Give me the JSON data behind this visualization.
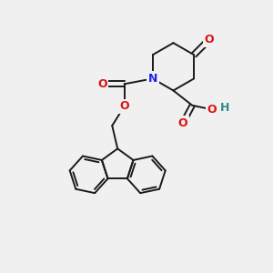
{
  "bg_color": "#f0f0f0",
  "bond_color": "#1a1a1a",
  "bond_width": 1.4,
  "atom_colors": {
    "N": "#2020ee",
    "O": "#dd1111",
    "H": "#338888",
    "C": "#1a1a1a"
  },
  "figsize": [
    3.0,
    3.0
  ],
  "dpi": 100,
  "xlim": [
    0,
    10
  ],
  "ylim": [
    0,
    10
  ]
}
